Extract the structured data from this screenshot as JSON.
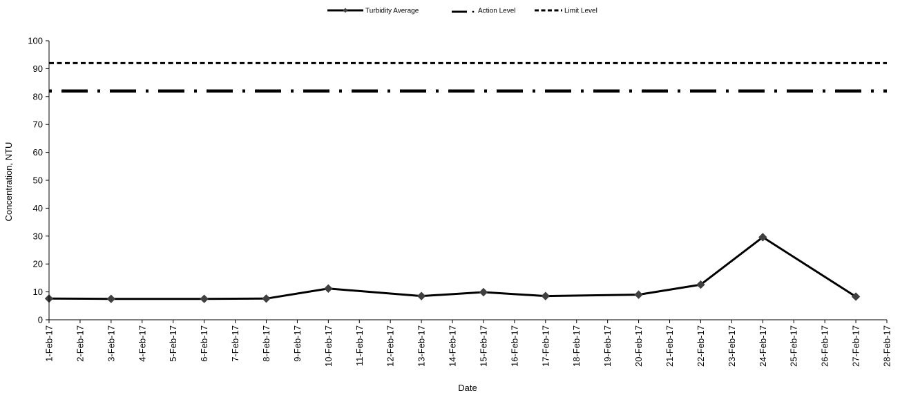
{
  "chart_data": {
    "type": "line",
    "title": "",
    "xlabel": "Date",
    "ylabel": "Concentration, NTU",
    "ylim": [
      0,
      100
    ],
    "yticks": [
      0,
      10,
      20,
      30,
      40,
      50,
      60,
      70,
      80,
      90,
      100
    ],
    "grid": false,
    "legend_position": "top-center",
    "categories": [
      "1-Feb-17",
      "2-Feb-17",
      "3-Feb-17",
      "4-Feb-17",
      "5-Feb-17",
      "6-Feb-17",
      "7-Feb-17",
      "8-Feb-17",
      "9-Feb-17",
      "10-Feb-17",
      "11-Feb-17",
      "12-Feb-17",
      "13-Feb-17",
      "14-Feb-17",
      "15-Feb-17",
      "16-Feb-17",
      "17-Feb-17",
      "18-Feb-17",
      "19-Feb-17",
      "20-Feb-17",
      "21-Feb-17",
      "22-Feb-17",
      "23-Feb-17",
      "24-Feb-17",
      "25-Feb-17",
      "26-Feb-17",
      "27-Feb-17",
      "28-Feb-17"
    ],
    "series": [
      {
        "name": "Turbidity Average",
        "style": "solid-with-diamond-markers",
        "color": "#000000",
        "marker_color": "#404040",
        "points": [
          {
            "x": "1-Feb-17",
            "y": 7.6
          },
          {
            "x": "3-Feb-17",
            "y": 7.5
          },
          {
            "x": "6-Feb-17",
            "y": 7.5
          },
          {
            "x": "8-Feb-17",
            "y": 7.6
          },
          {
            "x": "10-Feb-17",
            "y": 11.2
          },
          {
            "x": "13-Feb-17",
            "y": 8.5
          },
          {
            "x": "15-Feb-17",
            "y": 9.9
          },
          {
            "x": "17-Feb-17",
            "y": 8.5
          },
          {
            "x": "20-Feb-17",
            "y": 9.0
          },
          {
            "x": "22-Feb-17",
            "y": 12.6
          },
          {
            "x": "24-Feb-17",
            "y": 29.6
          },
          {
            "x": "27-Feb-17",
            "y": 8.3
          }
        ]
      },
      {
        "name": "Action Level",
        "style": "dash-dot",
        "color": "#000000",
        "constant": 82
      },
      {
        "name": "Limit Level",
        "style": "dashed",
        "color": "#000000",
        "constant": 92
      }
    ]
  }
}
